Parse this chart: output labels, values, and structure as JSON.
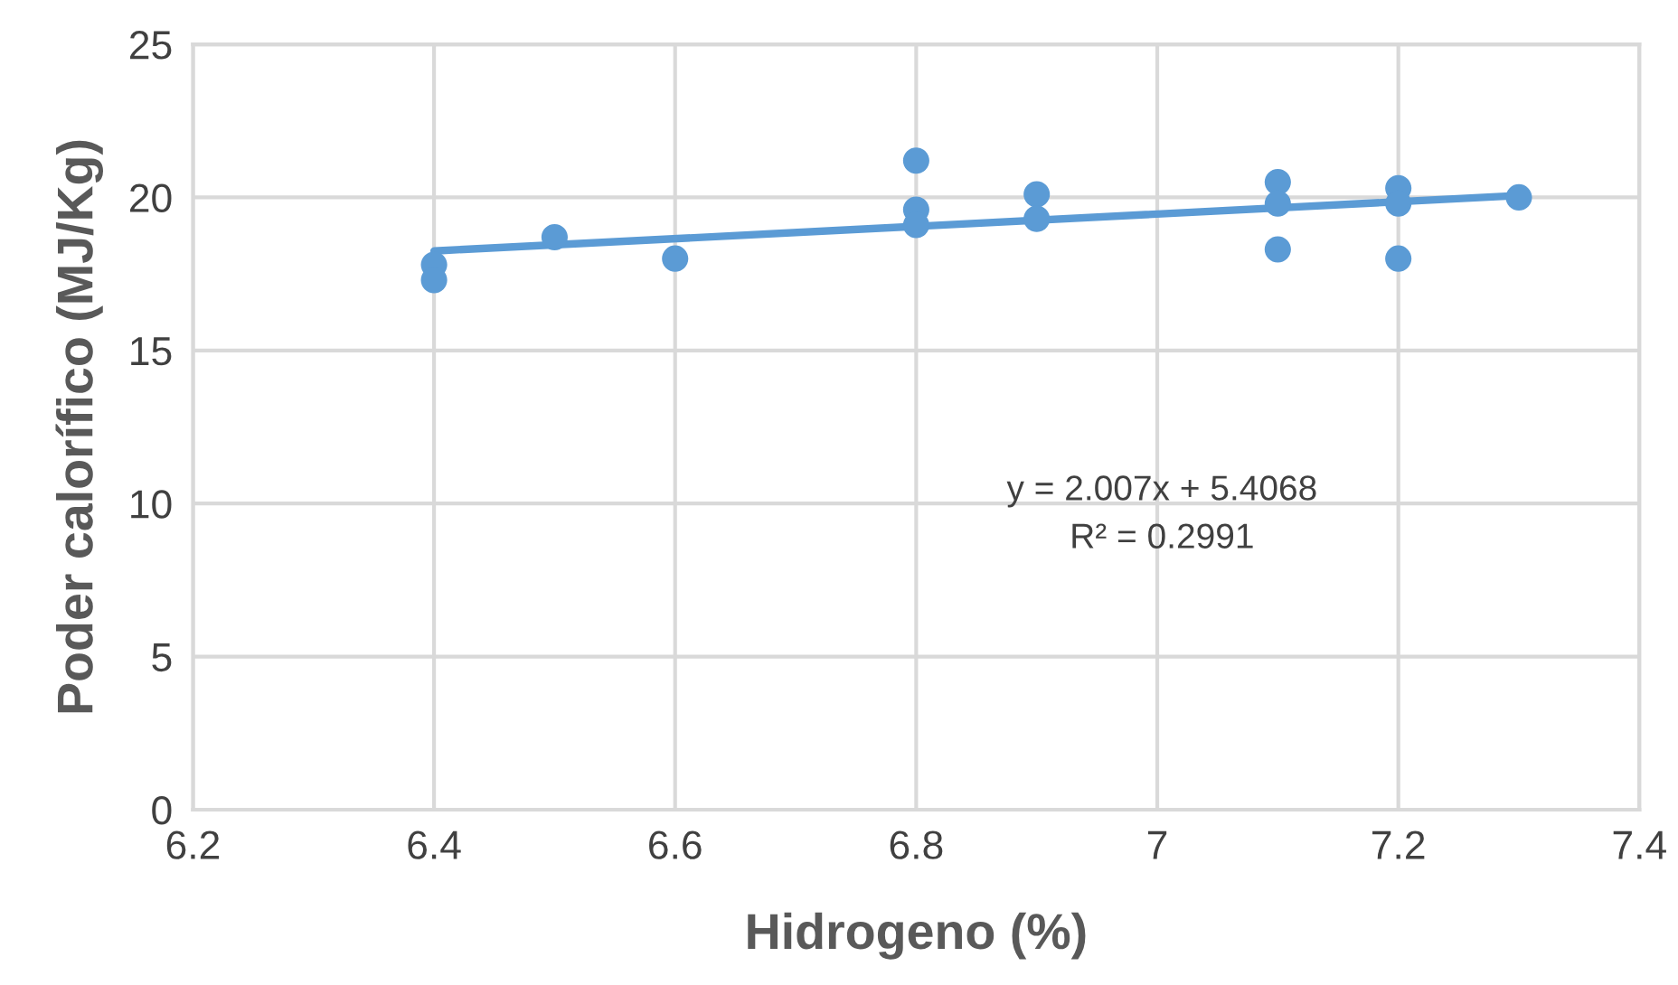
{
  "chart_data": {
    "type": "scatter",
    "xlabel": "Hidrogeno (%)",
    "ylabel": "Poder calorífico (MJ/Kg)",
    "series": [
      {
        "marker": "circle",
        "color": "#5b9bd5",
        "x": [
          6.4,
          6.4,
          6.5,
          6.6,
          6.8,
          6.8,
          6.8,
          6.9,
          6.9,
          7.1,
          7.1,
          7.1,
          7.2,
          7.2,
          7.2,
          7.3
        ],
        "values": [
          17.8,
          17.3,
          18.7,
          18.0,
          21.2,
          19.6,
          19.1,
          20.1,
          19.3,
          20.5,
          19.8,
          18.3,
          20.3,
          19.8,
          18.0,
          20.0
        ]
      },
      {
        "type": "line",
        "marker": "none",
        "color": "#5b9bd5",
        "x": [
          6.4,
          7.3
        ],
        "values": [
          18.25,
          20.06
        ]
      }
    ],
    "annotations": [
      "y = 2.007x + 5.4068\nR² = 0.2991"
    ],
    "xlim": [
      6.2,
      7.4
    ],
    "xticks": [
      6.2,
      6.4,
      6.6,
      6.8,
      {
        "value": 7,
        "label": "7"
      },
      7.2,
      7.4
    ],
    "ylim": [
      0,
      25
    ],
    "yticks": [
      0,
      5,
      10,
      15,
      20,
      25
    ],
    "grid": true,
    "legend": false
  }
}
